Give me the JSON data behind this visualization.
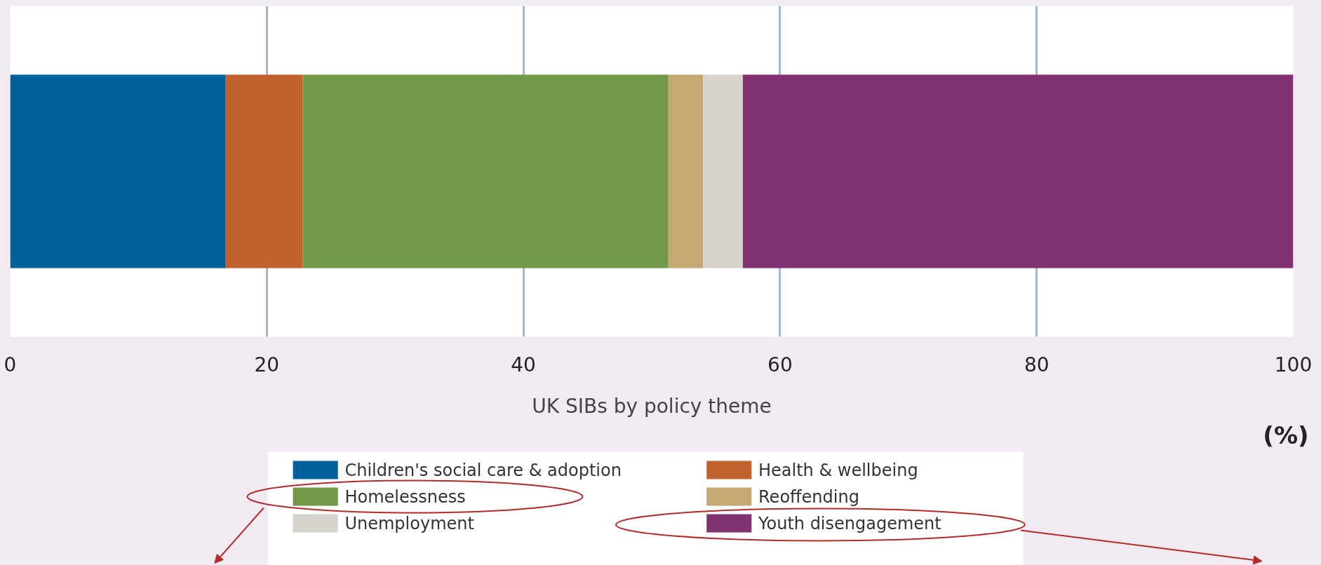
{
  "chart_data": {
    "type": "bar",
    "orientation": "horizontal",
    "stacked": true,
    "xlabel": "UK SIBs by policy theme",
    "categories": [
      null
    ],
    "series": [
      {
        "name": "Children's social care & adoption",
        "color": "#00629b",
        "values": [
          16.8
        ]
      },
      {
        "name": "Health & wellbeing",
        "color": "#c2622d",
        "values": [
          6.0
        ]
      },
      {
        "name": "Homelessness",
        "color": "#72994a",
        "values": [
          28.5
        ]
      },
      {
        "name": "Reoffending",
        "color": "#c6a872",
        "values": [
          2.7
        ]
      },
      {
        "name": "Unemployment",
        "color": "#d8d3cc",
        "values": [
          3.1
        ]
      },
      {
        "name": "Youth disengagement",
        "color": "#823273",
        "values": [
          42.9
        ]
      }
    ],
    "xlim": [
      0,
      100
    ],
    "xticks": [
      0,
      20,
      40,
      60,
      80,
      100
    ],
    "grid": "x",
    "tick_labels": "x",
    "legend": "bottom",
    "annotations": [
      "(%)"
    ]
  }
}
